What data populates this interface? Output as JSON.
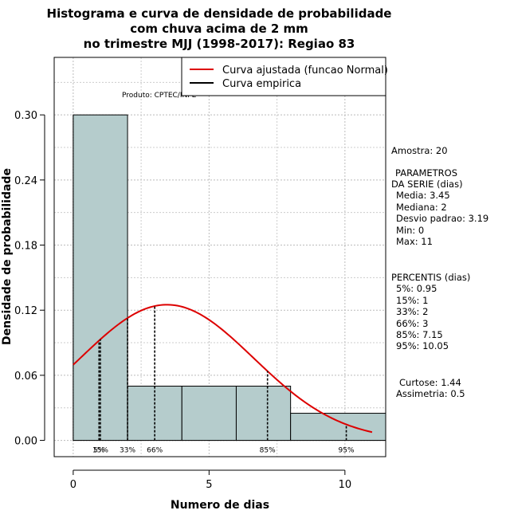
{
  "chart_data": {
    "type": "bar",
    "title": [
      "Histograma e curva de densidade de probabilidade",
      "com chuva acima de 2 mm",
      "no trimestre MJJ (1998-2017): Regiao 83"
    ],
    "xlabel": "Numero de dias",
    "ylabel": "Densidade de probabilidade",
    "xlim": [
      -0.7,
      11.5
    ],
    "ylim": [
      -0.015,
      0.353
    ],
    "xticks": [
      0,
      5,
      10
    ],
    "xtick_labels": [
      "0",
      "5",
      "10"
    ],
    "yticks": [
      0.0,
      0.06,
      0.12,
      0.18,
      0.24,
      0.3
    ],
    "ytick_labels": [
      "0.00",
      "0.06",
      "0.12",
      "0.18",
      "0.24",
      "0.30"
    ],
    "bins": [
      {
        "x0": 0,
        "x1": 2,
        "density": 0.3
      },
      {
        "x0": 2,
        "x1": 4,
        "density": 0.05
      },
      {
        "x0": 4,
        "x1": 6,
        "density": 0.05
      },
      {
        "x0": 6,
        "x1": 8,
        "density": 0.05
      },
      {
        "x0": 8,
        "x1": 11.5,
        "density": 0.025
      }
    ],
    "normal_curve": {
      "mean": 3.45,
      "sd": 3.19,
      "x_from": 0,
      "x_to": 11
    },
    "percentile_markers": [
      {
        "label": "5%",
        "x": 0.95
      },
      {
        "label": "15%",
        "x": 1
      },
      {
        "label": "33%",
        "x": 2
      },
      {
        "label": "66%",
        "x": 3
      },
      {
        "label": "85%",
        "x": 7.15
      },
      {
        "label": "95%",
        "x": 10.05
      }
    ],
    "legend": [
      {
        "label": "Curva ajustada (funcao Normal)",
        "color": "#dd0000"
      },
      {
        "label": "Curva empirica",
        "color": "#000000"
      }
    ],
    "legend_position": "top-right",
    "product_label": "Produto: CPTEC/INPE",
    "grid": true,
    "colors": {
      "bar_fill": "#b5cccc",
      "curve": "#dd0000",
      "marker": "#000000"
    }
  },
  "side_panel": {
    "sample": "Amostra: 20",
    "params_title_1": "PARAMETROS",
    "params_title_2": "DA SERIE (dias)",
    "media": "Media: 3.45",
    "mediana": "Mediana: 2",
    "desvio": "Desvio padrao: 3.19",
    "min": "Min: 0",
    "max": "Max: 11",
    "percentis_title": "PERCENTIS (dias)",
    "p5": "5%: 0.95",
    "p15": "15%: 1",
    "p33": "33%: 2",
    "p66": "66%: 3",
    "p85": "85%: 7.15",
    "p95": "95%: 10.05",
    "curtose": "Curtose: 1.44",
    "assimetria": "Assimetria: 0.5"
  }
}
